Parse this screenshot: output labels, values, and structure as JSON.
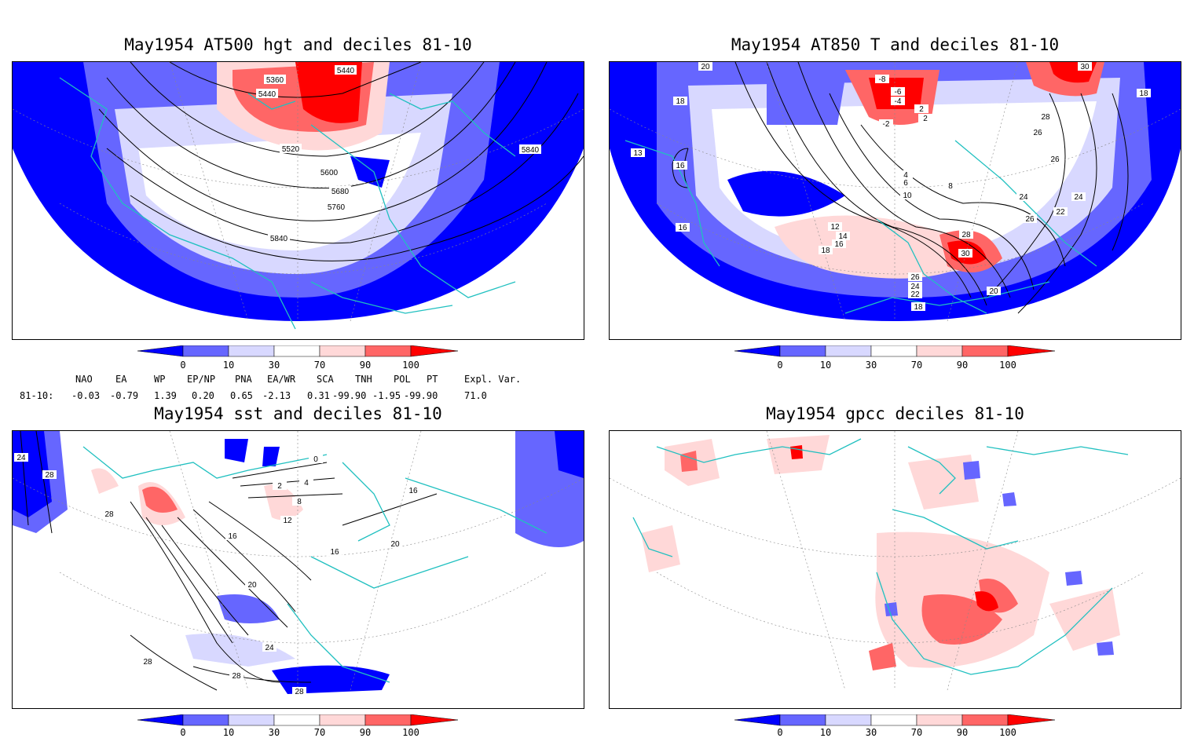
{
  "panels": [
    {
      "title": "May1954 AT500 hgt and deciles 81-10",
      "contour_labels": [
        "5360",
        "5440",
        "5440",
        "5520",
        "5600",
        "5680",
        "5760",
        "5840",
        "5840"
      ]
    },
    {
      "title": "May1954 AT850 T and deciles 81-10",
      "contour_labels": [
        "20",
        "30",
        "18",
        "16",
        "13",
        "16",
        "18",
        "-8",
        "-6",
        "-4",
        "2",
        "-2",
        "28",
        "26",
        "26",
        "24",
        "22",
        "24",
        "26",
        "12",
        "14",
        "16",
        "18",
        "28",
        "30",
        "26",
        "24",
        "22",
        "20",
        "18",
        "4",
        "6",
        "8",
        "10",
        "2"
      ]
    },
    {
      "title": "May1954 sst and deciles 81-10",
      "contour_labels": [
        "24",
        "28",
        "28",
        "0",
        "2",
        "4",
        "8",
        "12",
        "16",
        "16",
        "16",
        "20",
        "20",
        "24",
        "28",
        "28",
        "28"
      ]
    },
    {
      "title": "May1954 gpcc deciles 81-10",
      "contour_labels": []
    }
  ],
  "colorbar": {
    "labels": [
      "0",
      "10",
      "30",
      "70",
      "90",
      "100"
    ],
    "colors": [
      "#0000ff",
      "#6666ff",
      "#d8d8ff",
      "#ffffff",
      "#ffd8d8",
      "#ff6666",
      "#ff0000"
    ]
  },
  "indices": {
    "headers": [
      "NAO",
      "EA",
      "WP",
      "EP/NP",
      "PNA",
      "EA/WR",
      "SCA",
      "TNH",
      "POL",
      "PT",
      "Expl. Var."
    ],
    "row_label": "81-10:",
    "values": [
      "-0.03",
      "-0.79",
      "1.39",
      "0.20",
      "0.65",
      "-2.13",
      "0.31",
      "-99.90",
      "-1.95",
      "-99.90",
      "71.0"
    ]
  },
  "colors": {
    "coast": "#20c0c0",
    "contour": "#000000",
    "grid": "#888888"
  }
}
